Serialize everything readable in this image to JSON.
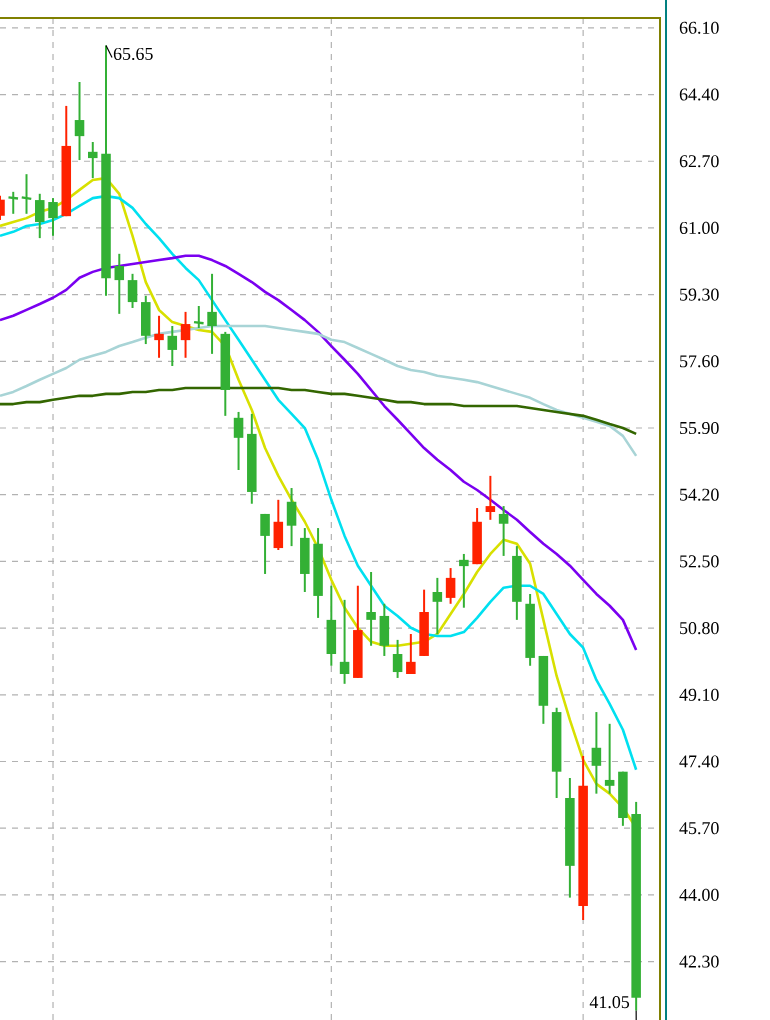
{
  "chart_data": {
    "type": "candlestick",
    "categories": [
      null,
      null,
      null,
      null,
      null,
      null,
      null,
      null,
      null,
      null,
      null,
      null,
      null,
      null,
      null,
      null,
      null,
      null,
      null,
      null,
      null,
      null,
      null,
      null,
      null,
      null,
      null,
      null,
      null,
      null,
      null,
      null,
      null,
      null,
      null,
      null,
      null,
      null,
      null,
      null,
      null,
      null,
      null,
      null,
      null,
      null,
      null,
      null,
      null
    ],
    "ohlc": [
      [
        61.31,
        61.82,
        61.2,
        61.72
      ],
      [
        61.78,
        61.92,
        61.36,
        61.75
      ],
      [
        61.78,
        62.37,
        61.36,
        61.74
      ],
      [
        61.71,
        61.87,
        60.74,
        61.15
      ],
      [
        61.66,
        61.76,
        60.8,
        61.25
      ],
      [
        61.3,
        64.11,
        61.3,
        63.09
      ],
      [
        63.75,
        64.72,
        62.73,
        63.34
      ],
      [
        62.94,
        63.19,
        62.27,
        62.78
      ],
      [
        62.89,
        65.65,
        59.27,
        59.72
      ],
      [
        60.03,
        60.34,
        58.81,
        59.67
      ],
      [
        59.67,
        59.83,
        58.96,
        59.11
      ],
      [
        59.11,
        59.27,
        58.04,
        58.25
      ],
      [
        58.14,
        58.76,
        57.69,
        58.3
      ],
      [
        58.25,
        58.5,
        57.48,
        57.89
      ],
      [
        58.14,
        58.86,
        57.69,
        58.55
      ],
      [
        58.6,
        59.01,
        58.45,
        58.57
      ],
      [
        58.86,
        59.83,
        57.79,
        58.5
      ],
      [
        58.3,
        58.35,
        56.21,
        56.87
      ],
      [
        56.16,
        56.31,
        54.83,
        55.65
      ],
      [
        55.75,
        56.26,
        53.97,
        54.27
      ],
      [
        53.71,
        53.71,
        52.18,
        53.15
      ],
      [
        52.84,
        54.07,
        52.79,
        53.51
      ],
      [
        54.02,
        54.37,
        52.89,
        53.41
      ],
      [
        53.1,
        53.35,
        51.72,
        52.18
      ],
      [
        52.95,
        53.35,
        51.06,
        51.62
      ],
      [
        51.01,
        51.88,
        49.84,
        50.14
      ],
      [
        49.94,
        51.52,
        49.38,
        49.63
      ],
      [
        49.53,
        51.88,
        49.53,
        50.75
      ],
      [
        51.21,
        52.23,
        50.35,
        51.01
      ],
      [
        51.11,
        51.42,
        50.09,
        50.35
      ],
      [
        50.14,
        50.5,
        49.53,
        49.68
      ],
      [
        49.63,
        50.65,
        49.63,
        49.94
      ],
      [
        50.09,
        51.78,
        50.09,
        51.21
      ],
      [
        51.72,
        52.08,
        50.65,
        51.47
      ],
      [
        51.57,
        52.33,
        51.42,
        52.08
      ],
      [
        52.54,
        52.69,
        51.32,
        52.38
      ],
      [
        52.43,
        53.86,
        52.43,
        53.51
      ],
      [
        53.76,
        54.68,
        53.56,
        53.91
      ],
      [
        53.71,
        53.91,
        52.64,
        53.46
      ],
      [
        52.64,
        52.89,
        51.01,
        51.47
      ],
      [
        51.42,
        51.67,
        49.84,
        50.04
      ],
      [
        50.09,
        50.09,
        48.36,
        48.82
      ],
      [
        48.66,
        48.77,
        46.47,
        47.14
      ],
      [
        46.47,
        46.98,
        43.93,
        44.74
      ],
      [
        43.72,
        47.54,
        43.36,
        46.78
      ],
      [
        47.75,
        48.66,
        46.58,
        47.29
      ],
      [
        46.93,
        48.36,
        46.58,
        46.78
      ],
      [
        47.14,
        47.14,
        45.76,
        45.96
      ],
      [
        46.06,
        46.37,
        41.05,
        41.38
      ]
    ],
    "colors": [
      "#ff2200",
      "#33b035",
      "#33b035",
      "#33b035",
      "#33b035",
      "#ff2200",
      "#33b035",
      "#33b035",
      "#33b035",
      "#33b035",
      "#33b035",
      "#33b035",
      "#ff2200",
      "#33b035",
      "#ff2200",
      "#33b035",
      "#33b035",
      "#33b035",
      "#33b035",
      "#33b035",
      "#33b035",
      "#ff2200",
      "#33b035",
      "#33b035",
      "#33b035",
      "#33b035",
      "#33b035",
      "#ff2200",
      "#33b035",
      "#33b035",
      "#33b035",
      "#ff2200",
      "#ff2200",
      "#33b035",
      "#ff2200",
      "#33b035",
      "#ff2200",
      "#ff2200",
      "#33b035",
      "#33b035",
      "#33b035",
      "#33b035",
      "#33b035",
      "#33b035",
      "#ff2200",
      "#33b035",
      "#33b035",
      "#33b035",
      "#33b035"
    ],
    "series": [
      {
        "type": "line",
        "color": "#d8e000",
        "values": [
          61.05,
          61.15,
          61.25,
          61.41,
          61.51,
          61.71,
          61.97,
          62.22,
          62.27,
          61.87,
          60.8,
          59.62,
          58.91,
          58.6,
          58.5,
          58.4,
          58.35,
          57.99,
          57.13,
          56.36,
          55.39,
          54.68,
          54.07,
          53.51,
          52.84,
          52.03,
          51.32,
          50.81,
          50.45,
          50.35,
          50.35,
          50.4,
          50.45,
          50.65,
          51.16,
          51.67,
          52.23,
          52.69,
          53.05,
          52.95,
          52.44,
          51.01,
          49.58,
          48.46,
          47.44,
          46.83,
          46.58,
          46.22,
          45.71
        ]
      },
      {
        "type": "line",
        "color": "#00e0f0",
        "values": [
          60.8,
          60.9,
          61.05,
          61.1,
          61.2,
          61.36,
          61.56,
          61.76,
          61.81,
          61.76,
          61.51,
          61.1,
          60.74,
          60.34,
          59.98,
          59.67,
          59.16,
          58.65,
          58.15,
          57.64,
          57.13,
          56.62,
          56.26,
          55.9,
          55.09,
          54.07,
          53.15,
          52.39,
          51.88,
          51.37,
          51.11,
          50.81,
          50.65,
          50.6,
          50.6,
          50.7,
          51.06,
          51.47,
          51.83,
          51.88,
          51.88,
          51.67,
          51.16,
          50.65,
          50.3,
          49.48,
          48.87,
          48.21,
          47.19
        ]
      },
      {
        "type": "line",
        "color": "#7a00f0",
        "values": [
          58.65,
          58.76,
          58.91,
          59.06,
          59.22,
          59.42,
          59.73,
          59.88,
          59.98,
          60.03,
          60.08,
          60.13,
          60.18,
          60.23,
          60.29,
          60.29,
          60.18,
          60.03,
          59.83,
          59.62,
          59.37,
          59.16,
          58.91,
          58.65,
          58.35,
          57.99,
          57.64,
          57.28,
          56.87,
          56.46,
          56.11,
          55.75,
          55.39,
          55.09,
          54.83,
          54.53,
          54.32,
          54.07,
          53.81,
          53.56,
          53.25,
          52.95,
          52.69,
          52.39,
          52.03,
          51.67,
          51.37,
          51.01,
          50.24
        ]
      },
      {
        "type": "line",
        "color": "#a8d4d6",
        "values": [
          56.72,
          56.82,
          56.97,
          57.13,
          57.28,
          57.43,
          57.64,
          57.74,
          57.84,
          57.99,
          58.09,
          58.2,
          58.3,
          58.35,
          58.4,
          58.45,
          58.5,
          58.5,
          58.5,
          58.5,
          58.5,
          58.45,
          58.4,
          58.35,
          58.3,
          58.15,
          58.09,
          57.94,
          57.79,
          57.64,
          57.48,
          57.38,
          57.33,
          57.23,
          57.18,
          57.13,
          57.07,
          56.97,
          56.87,
          56.77,
          56.67,
          56.51,
          56.36,
          56.26,
          56.16,
          56.06,
          55.95,
          55.7,
          55.19
        ]
      },
      {
        "type": "line",
        "color": "#336600",
        "values": [
          56.51,
          56.51,
          56.56,
          56.56,
          56.62,
          56.67,
          56.72,
          56.72,
          56.77,
          56.77,
          56.82,
          56.82,
          56.87,
          56.87,
          56.92,
          56.92,
          56.92,
          56.92,
          56.92,
          56.92,
          56.92,
          56.92,
          56.87,
          56.87,
          56.82,
          56.77,
          56.77,
          56.72,
          56.67,
          56.62,
          56.56,
          56.56,
          56.51,
          56.51,
          56.51,
          56.46,
          56.46,
          56.46,
          56.46,
          56.46,
          56.41,
          56.36,
          56.31,
          56.26,
          56.21,
          56.11,
          56.0,
          55.9,
          55.75
        ]
      }
    ],
    "ylim": [
      40.81,
      66.35
    ],
    "yticks": [
      {
        "value": 42.3,
        "label": "42.30"
      },
      {
        "value": 44.0,
        "label": "44.00"
      },
      {
        "value": 45.7,
        "label": "45.70"
      },
      {
        "value": 47.4,
        "label": "47.40"
      },
      {
        "value": 49.1,
        "label": "49.10"
      },
      {
        "value": 50.8,
        "label": "50.80"
      },
      {
        "value": 52.5,
        "label": "52.50"
      },
      {
        "value": 54.2,
        "label": "54.20"
      },
      {
        "value": 55.9,
        "label": "55.90"
      },
      {
        "value": 57.6,
        "label": "57.60"
      },
      {
        "value": 59.3,
        "label": "59.30"
      },
      {
        "value": 61.0,
        "label": "61.00"
      },
      {
        "value": 62.7,
        "label": "62.70"
      },
      {
        "value": 64.4,
        "label": "64.40"
      },
      {
        "value": 66.1,
        "label": "66.10"
      }
    ],
    "grid": true,
    "tick_labels": "y",
    "annotations": [
      "65.65",
      "41.05"
    ]
  }
}
